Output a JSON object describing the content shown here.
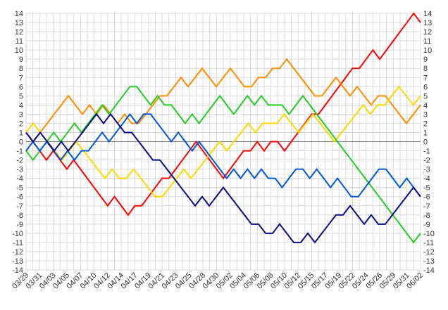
{
  "chart_data": {
    "type": "line",
    "title": "",
    "xlabel": "",
    "ylabel": "",
    "ylim": [
      -14,
      14
    ],
    "grid": true,
    "x_tick_labels": [
      "03/29",
      "03/31",
      "04/03",
      "04/05",
      "04/07",
      "04/10",
      "04/12",
      "04/14",
      "04/17",
      "04/19",
      "04/21",
      "04/23",
      "04/25",
      "04/28",
      "04/30",
      "05/02",
      "05/04",
      "05/06",
      "05/08",
      "05/10",
      "05/12",
      "05/15",
      "05/17",
      "05/19",
      "05/22",
      "05/24",
      "05/26",
      "05/29",
      "05/31",
      "06/02"
    ],
    "y_ticks": [
      14,
      13,
      12,
      11,
      10,
      9,
      8,
      7,
      6,
      5,
      4,
      3,
      2,
      1,
      0,
      -1,
      -2,
      -3,
      -4,
      -5,
      -6,
      -7,
      -8,
      -9,
      -10,
      -11,
      -12,
      -13,
      -14
    ],
    "series": [
      {
        "color": "#ff0000",
        "values": [
          1,
          0,
          -1,
          -2,
          -1,
          -2,
          -3,
          -2,
          -3,
          -4,
          -5,
          -6,
          -7,
          -6,
          -7,
          -8,
          -7,
          -7,
          -6,
          -5,
          -4,
          -4,
          -3,
          -2,
          -1,
          0,
          -1,
          -2,
          -3,
          -4,
          -3,
          -2,
          -1,
          -1,
          0,
          -1,
          0,
          0,
          -1,
          0,
          1,
          2,
          3,
          3,
          4,
          5,
          6,
          7,
          8,
          8,
          9,
          10,
          9,
          10,
          11,
          12,
          13,
          14,
          13
        ]
      },
      {
        "color": "#ff8c00",
        "values": [
          -1,
          0,
          1,
          2,
          3,
          4,
          5,
          4,
          3,
          4,
          3,
          4,
          3,
          2,
          3,
          2,
          2,
          3,
          4,
          5,
          5,
          6,
          7,
          6,
          7,
          8,
          7,
          6,
          7,
          8,
          7,
          6,
          6,
          7,
          7,
          8,
          8,
          9,
          8,
          7,
          6,
          5,
          5,
          6,
          7,
          6,
          5,
          6,
          5,
          4,
          5,
          5,
          4,
          3,
          2,
          3,
          4
        ]
      },
      {
        "color": "#ffd700",
        "values": [
          1,
          2,
          1,
          0,
          -1,
          -2,
          -1,
          0,
          -1,
          -2,
          -3,
          -4,
          -3,
          -4,
          -4,
          -3,
          -4,
          -5,
          -6,
          -6,
          -5,
          -4,
          -3,
          -4,
          -3,
          -2,
          -1,
          0,
          -1,
          0,
          1,
          2,
          1,
          2,
          2,
          2,
          3,
          2,
          1,
          2,
          3,
          2,
          1,
          0,
          1,
          2,
          3,
          4,
          3,
          4,
          4,
          5,
          6,
          5,
          4,
          5
        ]
      },
      {
        "color": "#22cc22",
        "values": [
          -1,
          -2,
          -1,
          0,
          1,
          0,
          1,
          2,
          1,
          2,
          3,
          4,
          3,
          4,
          5,
          6,
          6,
          5,
          4,
          5,
          4,
          4,
          3,
          2,
          3,
          2,
          3,
          4,
          5,
          4,
          3,
          4,
          5,
          4,
          5,
          4,
          4,
          4,
          3,
          4,
          5,
          4,
          3,
          2,
          1,
          0,
          -1,
          -2,
          -3,
          -4,
          -5,
          -6,
          -7,
          -8,
          -9,
          -10,
          -11,
          -10
        ]
      },
      {
        "color": "#0055dd",
        "values": [
          -1,
          0,
          -1,
          0,
          -1,
          -2,
          -1,
          -2,
          -1,
          -1,
          0,
          1,
          0,
          1,
          2,
          3,
          2,
          3,
          3,
          2,
          1,
          0,
          1,
          0,
          -1,
          0,
          -1,
          -2,
          -3,
          -4,
          -3,
          -4,
          -3,
          -4,
          -3,
          -4,
          -4,
          -5,
          -4,
          -3,
          -3,
          -4,
          -3,
          -4,
          -5,
          -4,
          -5,
          -6,
          -6,
          -5,
          -4,
          -3,
          -3,
          -4,
          -5,
          -4,
          -5,
          -6
        ]
      },
      {
        "color": "#0a0a80",
        "values": [
          1,
          0,
          1,
          0,
          -1,
          0,
          -1,
          0,
          1,
          2,
          3,
          2,
          3,
          2,
          1,
          1,
          0,
          -1,
          -2,
          -2,
          -3,
          -4,
          -5,
          -6,
          -7,
          -6,
          -7,
          -6,
          -5,
          -6,
          -7,
          -8,
          -9,
          -9,
          -10,
          -10,
          -9,
          -10,
          -11,
          -11,
          -10,
          -11,
          -10,
          -9,
          -8,
          -8,
          -7,
          -8,
          -9,
          -8,
          -9,
          -9,
          -8,
          -7,
          -6,
          -5,
          -6
        ]
      }
    ]
  }
}
